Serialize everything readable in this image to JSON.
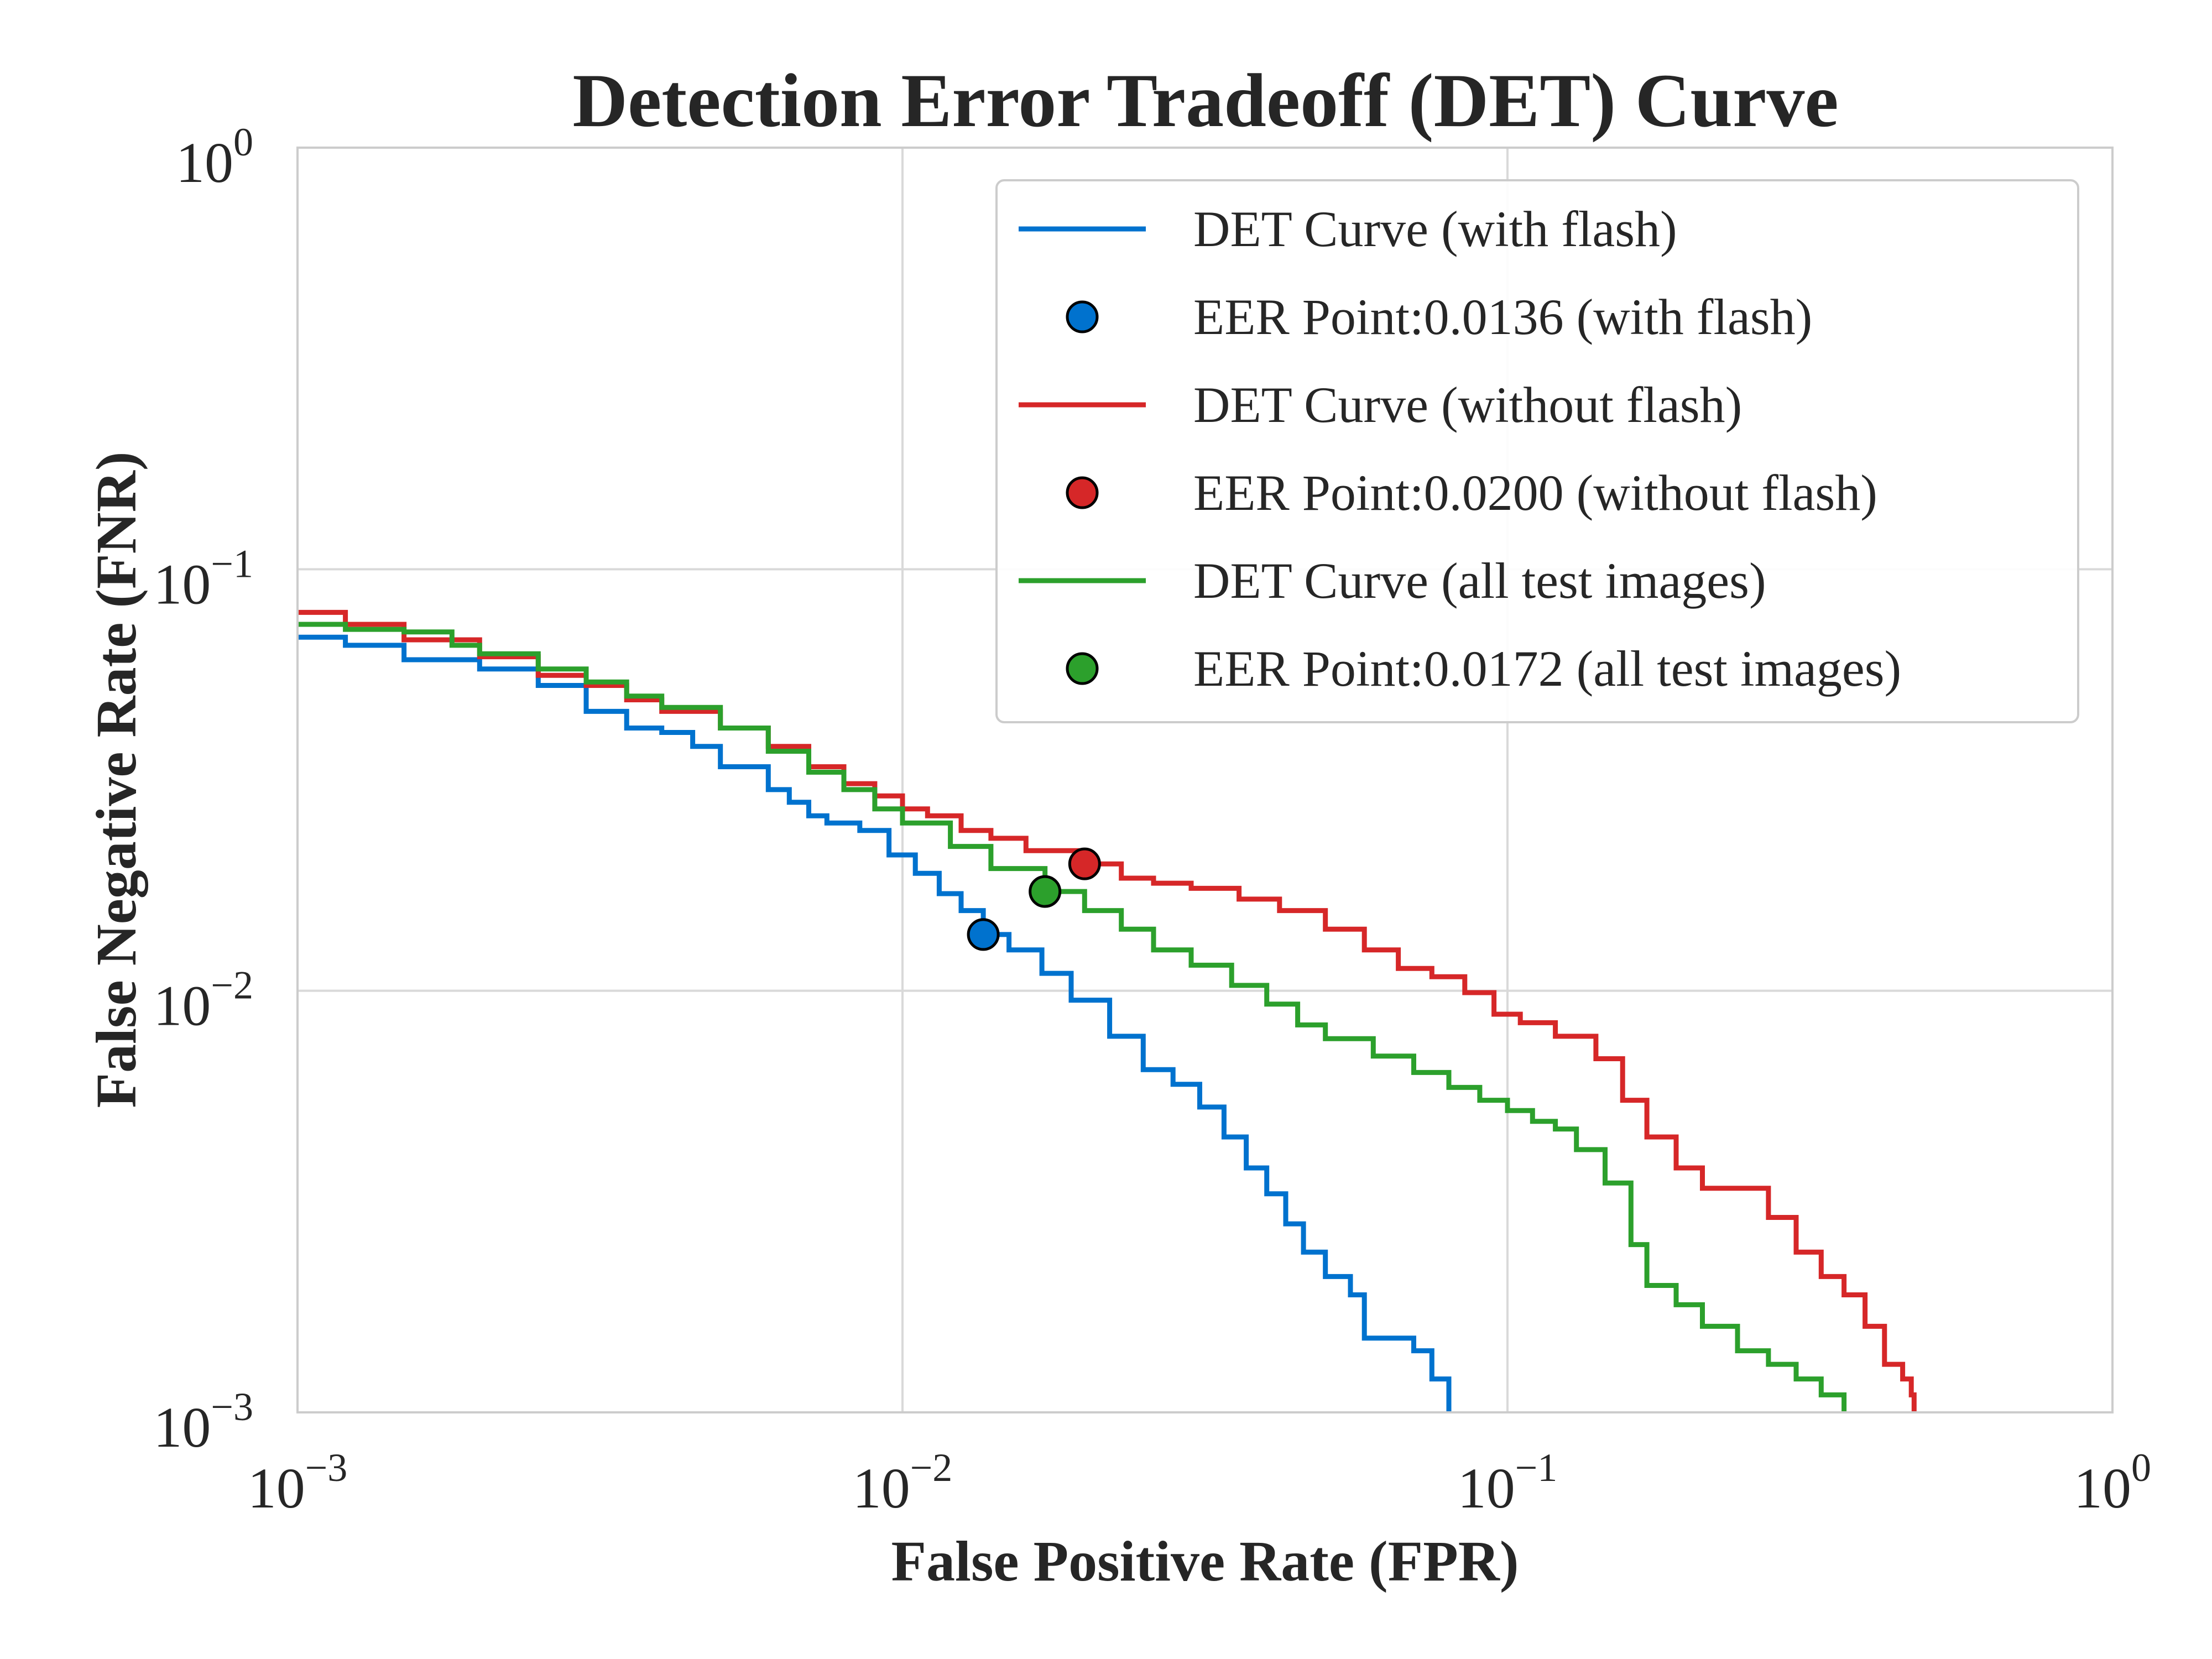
{
  "chart_data": {
    "type": "line",
    "title": "Detection Error Tradeoff (DET) Curve",
    "xlabel": "False Positive Rate (FPR)",
    "ylabel": "False Negative Rate (FNR)",
    "xscale": "log",
    "yscale": "log",
    "xlim": [
      0.001,
      1
    ],
    "ylim": [
      0.001,
      1
    ],
    "grid": true,
    "legend_position": "upper-right",
    "x_ticks": [
      {
        "base": "10",
        "exp": "−3",
        "value": 0.001
      },
      {
        "base": "10",
        "exp": "−2",
        "value": 0.01
      },
      {
        "base": "10",
        "exp": "−1",
        "value": 0.1
      },
      {
        "base": "10",
        "exp": "0",
        "value": 1
      }
    ],
    "y_ticks": [
      {
        "base": "10",
        "exp": "−3",
        "value": 0.001
      },
      {
        "base": "10",
        "exp": "−2",
        "value": 0.01
      },
      {
        "base": "10",
        "exp": "−1",
        "value": 0.1
      },
      {
        "base": "10",
        "exp": "0",
        "value": 1
      }
    ],
    "series": [
      {
        "name": "DET Curve (with flash)",
        "color": "#0072CE",
        "points": [
          [
            0.001,
            0.069
          ],
          [
            0.0012,
            0.066
          ],
          [
            0.0015,
            0.061
          ],
          [
            0.002,
            0.058
          ],
          [
            0.0025,
            0.053
          ],
          [
            0.003,
            0.046
          ],
          [
            0.0035,
            0.042
          ],
          [
            0.004,
            0.041
          ],
          [
            0.0045,
            0.038
          ],
          [
            0.005,
            0.034
          ],
          [
            0.006,
            0.03
          ],
          [
            0.0065,
            0.028
          ],
          [
            0.007,
            0.026
          ],
          [
            0.0075,
            0.025
          ],
          [
            0.0085,
            0.024
          ],
          [
            0.0095,
            0.021
          ],
          [
            0.0105,
            0.019
          ],
          [
            0.0115,
            0.017
          ],
          [
            0.0125,
            0.0155
          ],
          [
            0.0136,
            0.0136
          ],
          [
            0.015,
            0.0125
          ],
          [
            0.017,
            0.011
          ],
          [
            0.019,
            0.0095
          ],
          [
            0.022,
            0.0078
          ],
          [
            0.025,
            0.0065
          ],
          [
            0.028,
            0.006
          ],
          [
            0.031,
            0.0053
          ],
          [
            0.034,
            0.0045
          ],
          [
            0.037,
            0.0038
          ],
          [
            0.04,
            0.0033
          ],
          [
            0.043,
            0.0028
          ],
          [
            0.046,
            0.0024
          ],
          [
            0.05,
            0.0021
          ],
          [
            0.055,
            0.0019
          ],
          [
            0.058,
            0.0015
          ],
          [
            0.07,
            0.0014
          ],
          [
            0.075,
            0.0012
          ],
          [
            0.08,
            0.001
          ]
        ]
      },
      {
        "name": "DET Curve (without flash)",
        "color": "#D62728",
        "points": [
          [
            0.001,
            0.079
          ],
          [
            0.0012,
            0.074
          ],
          [
            0.0015,
            0.068
          ],
          [
            0.002,
            0.062
          ],
          [
            0.0025,
            0.056
          ],
          [
            0.003,
            0.053
          ],
          [
            0.0035,
            0.049
          ],
          [
            0.004,
            0.046
          ],
          [
            0.005,
            0.042
          ],
          [
            0.006,
            0.038
          ],
          [
            0.007,
            0.034
          ],
          [
            0.008,
            0.031
          ],
          [
            0.009,
            0.029
          ],
          [
            0.01,
            0.027
          ],
          [
            0.011,
            0.026
          ],
          [
            0.0125,
            0.024
          ],
          [
            0.014,
            0.023
          ],
          [
            0.016,
            0.0215
          ],
          [
            0.02,
            0.02
          ],
          [
            0.023,
            0.0185
          ],
          [
            0.026,
            0.018
          ],
          [
            0.03,
            0.0175
          ],
          [
            0.036,
            0.0165
          ],
          [
            0.042,
            0.0155
          ],
          [
            0.05,
            0.014
          ],
          [
            0.058,
            0.0125
          ],
          [
            0.066,
            0.0113
          ],
          [
            0.075,
            0.0108
          ],
          [
            0.085,
            0.0099
          ],
          [
            0.095,
            0.0088
          ],
          [
            0.105,
            0.0084
          ],
          [
            0.12,
            0.0078
          ],
          [
            0.14,
            0.0069
          ],
          [
            0.155,
            0.0055
          ],
          [
            0.17,
            0.0045
          ],
          [
            0.19,
            0.0038
          ],
          [
            0.21,
            0.0034
          ],
          [
            0.24,
            0.0034
          ],
          [
            0.27,
            0.0029
          ],
          [
            0.3,
            0.0024
          ],
          [
            0.33,
            0.0021
          ],
          [
            0.36,
            0.0019
          ],
          [
            0.39,
            0.0016
          ],
          [
            0.42,
            0.0013
          ],
          [
            0.45,
            0.0012
          ],
          [
            0.465,
            0.0011
          ],
          [
            0.47,
            0.001
          ]
        ]
      },
      {
        "name": "DET Curve (all test images)",
        "color": "#2CA02C",
        "points": [
          [
            0.001,
            0.074
          ],
          [
            0.0012,
            0.072
          ],
          [
            0.0015,
            0.071
          ],
          [
            0.0018,
            0.066
          ],
          [
            0.002,
            0.063
          ],
          [
            0.0025,
            0.058
          ],
          [
            0.003,
            0.054
          ],
          [
            0.0035,
            0.05
          ],
          [
            0.004,
            0.047
          ],
          [
            0.005,
            0.042
          ],
          [
            0.006,
            0.037
          ],
          [
            0.007,
            0.033
          ],
          [
            0.008,
            0.03
          ],
          [
            0.009,
            0.027
          ],
          [
            0.01,
            0.025
          ],
          [
            0.012,
            0.022
          ],
          [
            0.014,
            0.0195
          ],
          [
            0.0172,
            0.0172
          ],
          [
            0.02,
            0.0155
          ],
          [
            0.023,
            0.014
          ],
          [
            0.026,
            0.0125
          ],
          [
            0.03,
            0.0115
          ],
          [
            0.035,
            0.0103
          ],
          [
            0.04,
            0.0093
          ],
          [
            0.045,
            0.0083
          ],
          [
            0.05,
            0.0077
          ],
          [
            0.06,
            0.007
          ],
          [
            0.07,
            0.0064
          ],
          [
            0.08,
            0.0059
          ],
          [
            0.09,
            0.0055
          ],
          [
            0.1,
            0.0052
          ],
          [
            0.11,
            0.0049
          ],
          [
            0.12,
            0.0047
          ],
          [
            0.13,
            0.0042
          ],
          [
            0.145,
            0.0035
          ],
          [
            0.16,
            0.0025
          ],
          [
            0.17,
            0.002
          ],
          [
            0.19,
            0.0018
          ],
          [
            0.21,
            0.0016
          ],
          [
            0.24,
            0.0014
          ],
          [
            0.27,
            0.0013
          ],
          [
            0.3,
            0.0012
          ],
          [
            0.33,
            0.0011
          ],
          [
            0.35,
            0.0011
          ],
          [
            0.36,
            0.001
          ]
        ]
      }
    ],
    "eer_points": [
      {
        "name": "EER Point:0.0136 (with flash)",
        "color": "#0072CE",
        "x": 0.0136,
        "y": 0.0136
      },
      {
        "name": "EER Point:0.0200 (without flash)",
        "color": "#D62728",
        "x": 0.02,
        "y": 0.02
      },
      {
        "name": "EER Point:0.0172 (all test images)",
        "color": "#2CA02C",
        "x": 0.0172,
        "y": 0.0172
      }
    ],
    "legend": [
      {
        "label": "DET Curve (with flash)",
        "kind": "line",
        "color": "#0072CE"
      },
      {
        "label": "EER Point:0.0136 (with flash)",
        "kind": "marker",
        "color": "#0072CE"
      },
      {
        "label": "DET Curve (without flash)",
        "kind": "line",
        "color": "#D62728"
      },
      {
        "label": "EER Point:0.0200 (without flash)",
        "kind": "marker",
        "color": "#D62728"
      },
      {
        "label": "DET Curve (all test images)",
        "kind": "line",
        "color": "#2CA02C"
      },
      {
        "label": "EER Point:0.0172 (all test images)",
        "kind": "marker",
        "color": "#2CA02C"
      }
    ]
  }
}
